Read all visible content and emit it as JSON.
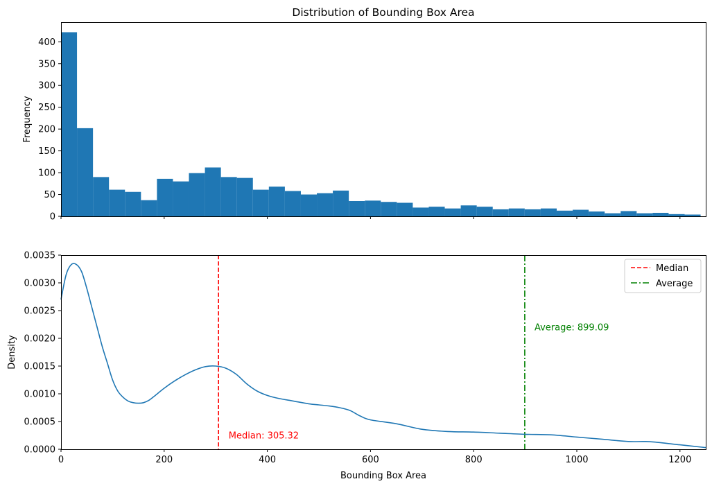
{
  "chart_data": [
    {
      "type": "bar",
      "title": "Distribution of Bounding Box Area",
      "xlabel": "",
      "ylabel": "Frequency",
      "xlim": [
        0,
        1250
      ],
      "ylim": [
        0,
        445
      ],
      "yticks": [
        0,
        50,
        100,
        150,
        200,
        250,
        300,
        350,
        400
      ],
      "xticks": [
        0,
        200,
        400,
        600,
        800,
        1000,
        1200
      ],
      "show_xtick_labels": false,
      "grid": false,
      "color": "#1f77b4",
      "bin_width": 31.0,
      "bin_start": 0,
      "values": [
        422,
        202,
        90,
        61,
        56,
        37,
        86,
        80,
        99,
        112,
        90,
        88,
        61,
        68,
        58,
        50,
        53,
        59,
        35,
        36,
        33,
        31,
        20,
        22,
        18,
        25,
        22,
        16,
        18,
        16,
        18,
        13,
        15,
        11,
        7,
        12,
        7,
        8,
        5,
        4
      ]
    },
    {
      "type": "line",
      "title": "",
      "xlabel": "Bounding Box Area",
      "ylabel": "Density",
      "xlim": [
        0,
        1250
      ],
      "ylim": [
        0,
        0.0035
      ],
      "xticks": [
        0,
        200,
        400,
        600,
        800,
        1000,
        1200
      ],
      "yticks": [
        "0.0000",
        "0.0005",
        "0.0010",
        "0.0015",
        "0.0020",
        "0.0025",
        "0.0030",
        "0.0035"
      ],
      "grid": false,
      "legend_position": "top-right",
      "series": [
        {
          "color": "#1f77b4",
          "x": [
            0,
            10,
            20,
            30,
            40,
            50,
            60,
            70,
            80,
            90,
            100,
            110,
            120,
            130,
            140,
            150,
            160,
            170,
            180,
            200,
            220,
            240,
            260,
            280,
            300,
            320,
            340,
            360,
            380,
            400,
            420,
            450,
            480,
            500,
            520,
            540,
            560,
            580,
            600,
            650,
            700,
            750,
            800,
            850,
            900,
            950,
            1000,
            1050,
            1100,
            1130,
            1150,
            1200,
            1250
          ],
          "y": [
            0.0027,
            0.00315,
            0.00333,
            0.00333,
            0.0032,
            0.0029,
            0.00255,
            0.0022,
            0.00185,
            0.00155,
            0.00125,
            0.00105,
            0.00094,
            0.00087,
            0.00084,
            0.00083,
            0.00084,
            0.00088,
            0.00095,
            0.0011,
            0.00123,
            0.00134,
            0.00143,
            0.00149,
            0.0015,
            0.00146,
            0.00135,
            0.00118,
            0.00105,
            0.00097,
            0.00092,
            0.00087,
            0.00082,
            0.0008,
            0.00078,
            0.00075,
            0.0007,
            0.0006,
            0.00053,
            0.00046,
            0.00036,
            0.00032,
            0.00031,
            0.00029,
            0.00027,
            0.00026,
            0.00022,
            0.00018,
            0.00014,
            0.00014,
            0.00013,
            8e-05,
            3e-05
          ]
        }
      ],
      "reference_lines": [
        {
          "name": "Median",
          "value": 305.32,
          "color": "#ff0000",
          "style": "dashed",
          "label": "Median: 305.32"
        },
        {
          "name": "Average",
          "value": 899.09,
          "color": "#008000",
          "style": "dashdot",
          "label": "Average: 899.09"
        }
      ],
      "annotations": [
        {
          "text": "Median: 305.32",
          "x": 325,
          "y": 0.00025,
          "color": "#ff0000"
        },
        {
          "text": "Average: 899.09",
          "x": 918,
          "y": 0.0022,
          "color": "#008000"
        }
      ]
    }
  ]
}
